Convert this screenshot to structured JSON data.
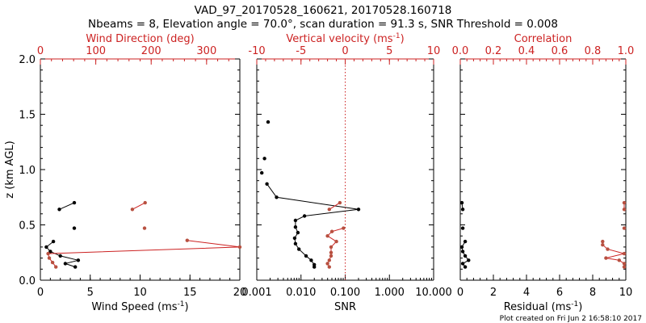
{
  "colors": {
    "black": "#000000",
    "red": "#cc2222",
    "marker_red": "#b85040"
  },
  "header": {
    "title_line1": "VAD_97_20170528_160621, 20170528.160718",
    "title_line2": "Nbeams = 8, Elevation angle = 70.0°, scan duration = 91.3 s, SNR Threshold = 0.008"
  },
  "footer": {
    "plot_created": "Plot created on Fri Jun  2 16:58:10 2017"
  },
  "chart_data": [
    {
      "type": "line",
      "panel": "wind",
      "ylabel": "z (km AGL)",
      "ylim": [
        0,
        2.0
      ],
      "yticks": [
        "0.0",
        "0.5",
        "1.0",
        "1.5",
        "2.0"
      ],
      "yticks_values": [
        0,
        0.5,
        1.0,
        1.5,
        2.0
      ],
      "bottom_axis": {
        "label": "Wind Speed (ms",
        "label_sup": "-1",
        "label_end": ")",
        "range": [
          0,
          20
        ],
        "ticks": [
          "0",
          "5",
          "10",
          "15",
          "20"
        ],
        "tick_values": [
          0,
          5,
          10,
          15,
          20
        ],
        "color": "black"
      },
      "top_axis": {
        "label": "Wind Direction (deg)",
        "range": [
          0,
          360
        ],
        "ticks": [
          "0",
          "100",
          "200",
          "300"
        ],
        "tick_values": [
          0,
          100,
          200,
          300
        ],
        "color": "red"
      },
      "series": [
        {
          "axis": "bottom",
          "color": "black",
          "segments": [
            [
              [
                3.5,
                0.12
              ],
              [
                2.5,
                0.15
              ],
              [
                3.8,
                0.18
              ],
              [
                2.0,
                0.22
              ],
              [
                1.0,
                0.26
              ],
              [
                0.6,
                0.3
              ],
              [
                1.3,
                0.35
              ]
            ],
            [
              [
                3.4,
                0.47
              ]
            ],
            [
              [
                1.9,
                0.64
              ],
              [
                3.4,
                0.7
              ]
            ]
          ]
        },
        {
          "axis": "top",
          "color": "red",
          "segments": [
            [
              [
                28,
                0.12
              ],
              [
                22,
                0.16
              ],
              [
                16,
                0.2
              ],
              [
                14,
                0.24
              ],
              [
                360,
                0.3
              ],
              [
                265,
                0.36
              ]
            ],
            [
              [
                188,
                0.47
              ]
            ],
            [
              [
                166,
                0.64
              ],
              [
                189,
                0.7
              ]
            ]
          ]
        }
      ]
    },
    {
      "type": "line",
      "panel": "vertical",
      "ylim": [
        0,
        2.0
      ],
      "bottom_axis": {
        "label": "SNR",
        "scale": "log",
        "range": [
          0.001,
          10
        ],
        "ticks": [
          "0.001",
          "0.010",
          "0.100",
          "1.000",
          "10.000"
        ],
        "tick_values": [
          0.001,
          0.01,
          0.1,
          1,
          10
        ],
        "color": "black"
      },
      "top_axis": {
        "label": "Vertical velocity (ms",
        "label_sup": "-1",
        "label_end": ")",
        "range": [
          -10,
          10
        ],
        "ticks": [
          "-10",
          "-5",
          "0",
          "5",
          "10"
        ],
        "tick_values": [
          -10,
          -5,
          0,
          5,
          10
        ],
        "zero_line": true,
        "color": "red"
      },
      "series": [
        {
          "axis": "bottom",
          "color": "black",
          "segments": [
            [
              [
                0.02,
                0.12
              ],
              [
                0.02,
                0.14
              ],
              [
                0.017,
                0.18
              ],
              [
                0.013,
                0.22
              ],
              [
                0.009,
                0.28
              ],
              [
                0.0075,
                0.33
              ],
              [
                0.0072,
                0.38
              ],
              [
                0.0085,
                0.43
              ],
              [
                0.0075,
                0.48
              ],
              [
                0.0075,
                0.54
              ],
              [
                0.012,
                0.58
              ],
              [
                0.2,
                0.64
              ],
              [
                0.0028,
                0.75
              ],
              [
                0.0017,
                0.87
              ]
            ],
            [
              [
                0.0013,
                0.97
              ]
            ],
            [
              [
                0.0015,
                1.1
              ]
            ],
            [
              [
                0.0018,
                1.43
              ]
            ]
          ]
        },
        {
          "axis": "top",
          "color": "red",
          "segments": [
            [
              [
                -1.8,
                0.12
              ],
              [
                -2.0,
                0.15
              ],
              [
                -1.8,
                0.18
              ],
              [
                -1.6,
                0.22
              ],
              [
                -1.6,
                0.25
              ],
              [
                -1.6,
                0.3
              ],
              [
                -1.0,
                0.35
              ],
              [
                -2.0,
                0.4
              ],
              [
                -1.5,
                0.44
              ],
              [
                -0.2,
                0.47
              ]
            ],
            [
              [
                -1.8,
                0.64
              ],
              [
                -0.6,
                0.7
              ]
            ]
          ]
        }
      ]
    },
    {
      "type": "line",
      "panel": "correlation",
      "ylim": [
        0,
        2.0
      ],
      "bottom_axis": {
        "label": "Residual (ms",
        "label_sup": "-1",
        "label_end": ")",
        "range": [
          0,
          10
        ],
        "ticks": [
          "0",
          "2",
          "4",
          "6",
          "8",
          "10"
        ],
        "tick_values": [
          0,
          2,
          4,
          6,
          8,
          10
        ],
        "color": "black"
      },
      "top_axis": {
        "label": "Correlation",
        "range": [
          0.0,
          1.0
        ],
        "ticks": [
          "0.0",
          "0.2",
          "0.4",
          "0.6",
          "0.8",
          "1.0"
        ],
        "tick_values": [
          0.0,
          0.2,
          0.4,
          0.6,
          0.8,
          1.0
        ],
        "color": "red"
      },
      "series": [
        {
          "axis": "bottom",
          "color": "black",
          "segments": [
            [
              [
                0.3,
                0.12
              ],
              [
                0.15,
                0.15
              ],
              [
                0.5,
                0.18
              ],
              [
                0.3,
                0.22
              ],
              [
                0.15,
                0.26
              ],
              [
                0.1,
                0.3
              ],
              [
                0.3,
                0.35
              ]
            ],
            [
              [
                0.15,
                0.47
              ]
            ],
            [
              [
                0.15,
                0.64
              ],
              [
                0.1,
                0.7
              ]
            ]
          ]
        },
        {
          "axis": "top",
          "color": "red",
          "segments": [
            [
              [
                0.99,
                0.12
              ],
              [
                0.99,
                0.15
              ],
              [
                0.96,
                0.18
              ],
              [
                0.88,
                0.2
              ],
              [
                0.99,
                0.24
              ],
              [
                0.89,
                0.28
              ],
              [
                0.86,
                0.32
              ],
              [
                0.86,
                0.35
              ]
            ],
            [
              [
                0.99,
                0.47
              ]
            ],
            [
              [
                0.99,
                0.64
              ],
              [
                0.99,
                0.7
              ]
            ]
          ]
        }
      ]
    }
  ]
}
